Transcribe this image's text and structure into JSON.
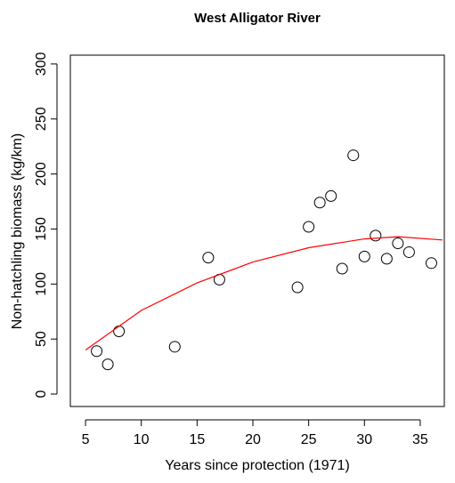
{
  "chart_data": {
    "type": "scatter",
    "title": "West Alligator River",
    "x_label": "Years since protection (1971)",
    "y_label": "Non-hatchling biomass (kg/km)",
    "xlim": [
      3.64,
      37.16
    ],
    "ylim": [
      -11.3,
      308
    ],
    "xticks": [
      5,
      10,
      15,
      20,
      25,
      30,
      35
    ],
    "yticks": [
      0,
      50,
      100,
      150,
      200,
      250,
      300
    ],
    "series": [
      {
        "type": "scatter",
        "color": "#000000",
        "x": [
          6,
          7,
          8,
          13,
          16,
          17,
          24,
          25,
          26,
          27,
          28,
          29,
          30,
          31,
          32,
          33,
          34,
          36
        ],
        "values": [
          39,
          27,
          57,
          43,
          124,
          104,
          97,
          152,
          174,
          180,
          114,
          217,
          125,
          144,
          123,
          137,
          129,
          119
        ]
      },
      {
        "type": "line",
        "color": "#ff0000",
        "x": [
          5,
          10,
          15,
          20,
          25,
          30,
          33,
          37
        ],
        "values": [
          40,
          76,
          101,
          120,
          133,
          141,
          143,
          140
        ]
      }
    ]
  }
}
